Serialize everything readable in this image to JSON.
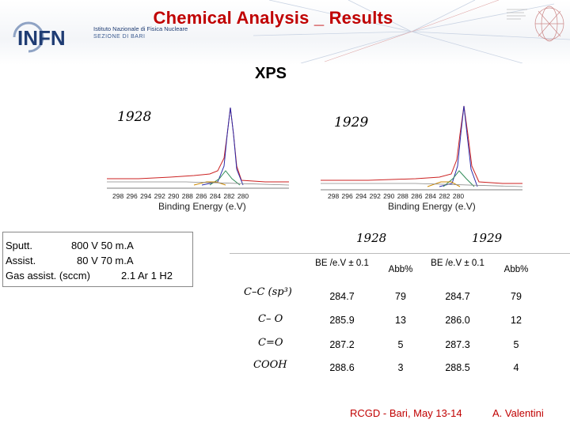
{
  "header": {
    "title": "Chemical Analysis _ Results",
    "logo_name": "INFN",
    "logo_line1": "Istituto Nazionale di Fisica Nucleare",
    "logo_line2": "SEZIONE DI BARI"
  },
  "subtitle": "XPS",
  "spectra": [
    {
      "label": "1928",
      "ticks": "298 296 294 292 290 288 286 284 282 280",
      "xlabel": "Binding Energy (e.V)"
    },
    {
      "label": "1929",
      "ticks": "298  296  294  292  290  288  286  284  282  280",
      "xlabel": "Binding Energy (e.V)"
    }
  ],
  "parameters": [
    {
      "name": "Sputt.",
      "value": "800 V 50 m.A"
    },
    {
      "name": "Assist.",
      "value": "80 V 70 m.A"
    },
    {
      "name": "Gas assist. (sccm)",
      "value": "2.1 Ar 1 H2"
    }
  ],
  "results": {
    "samples": [
      "1928",
      "1929"
    ],
    "columns": [
      "BE /e.V ± 0.1",
      "Abb%",
      "BE /e.V ± 0.1",
      "Abb%"
    ],
    "rows": [
      {
        "label": "C–C  (sp³)",
        "values": [
          "284.7",
          "79",
          "284.7",
          "79"
        ]
      },
      {
        "label": "C– O",
        "values": [
          "285.9",
          "13",
          "286.0",
          "12"
        ]
      },
      {
        "label": "C=O",
        "values": [
          "287.2",
          "5",
          "287.3",
          "5"
        ]
      },
      {
        "label": "COOH",
        "values": [
          "288.6",
          "3",
          "288.5",
          "4"
        ]
      }
    ]
  },
  "footer": {
    "event": "RCGD  - Bari, May 13-14",
    "author": "A. Valentini"
  },
  "colors": {
    "title": "#c00000",
    "footer": "#c00000",
    "logo": "#1f3c73"
  }
}
